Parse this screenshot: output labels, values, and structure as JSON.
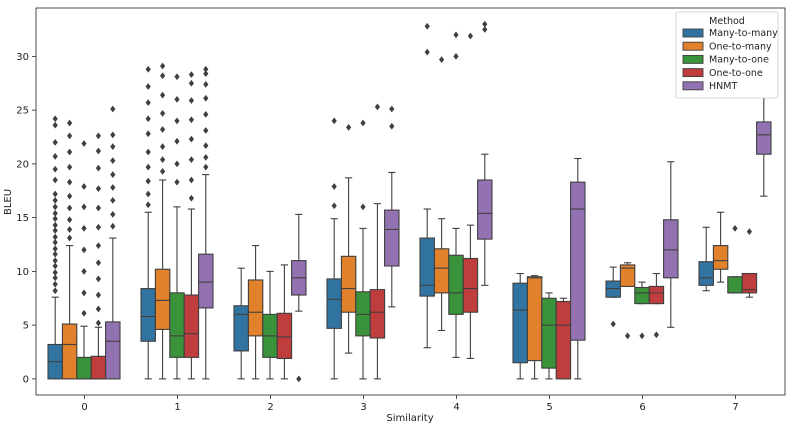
{
  "chart_data": {
    "type": "boxplot",
    "title": "",
    "xlabel": "Similarity",
    "ylabel": "BLEU",
    "ylim": [
      -1.5,
      34.5
    ],
    "yticks": [
      0,
      5,
      10,
      15,
      20,
      25,
      30
    ],
    "categories": [
      "0",
      "1",
      "2",
      "3",
      "4",
      "5",
      "6",
      "7"
    ],
    "legend": {
      "title": "Method",
      "position": "top-right"
    },
    "series": [
      {
        "name": "Many-to-many",
        "color": "#3274a1",
        "boxes": [
          {
            "q1": 0.0,
            "median": 1.6,
            "q3": 3.2,
            "whisker_low": 0.0,
            "whisker_high": 7.6,
            "outliers": [
              8.2,
              8.8,
              9.4,
              9.9,
              10.5,
              11.0,
              11.6,
              12.1,
              12.7,
              13.2,
              13.8,
              14.3,
              14.9,
              15.4,
              16.0,
              16.6,
              17.2,
              18.5,
              19.5,
              20.7,
              22.0,
              23.6,
              24.2
            ]
          },
          {
            "q1": 3.5,
            "median": 5.8,
            "q3": 8.4,
            "whisker_low": 0.0,
            "whisker_high": 15.5,
            "outliers": [
              16.2,
              17.2,
              18.4,
              19.7,
              21.1,
              22.8,
              24.2,
              25.7,
              27.2,
              28.8
            ]
          },
          {
            "q1": 2.6,
            "median": 6.0,
            "q3": 6.8,
            "whisker_low": 0.0,
            "whisker_high": 10.3,
            "outliers": []
          },
          {
            "q1": 4.7,
            "median": 7.4,
            "q3": 9.3,
            "whisker_low": 0.0,
            "whisker_high": 14.9,
            "outliers": [
              16.1,
              17.9,
              24.0
            ]
          },
          {
            "q1": 7.7,
            "median": 8.7,
            "q3": 13.1,
            "whisker_low": 2.9,
            "whisker_high": 15.8,
            "outliers": [
              30.4,
              32.8
            ]
          },
          {
            "q1": 1.5,
            "median": 6.4,
            "q3": 8.9,
            "whisker_low": 0.0,
            "whisker_high": 9.8,
            "outliers": []
          },
          {
            "q1": 7.6,
            "median": 8.4,
            "q3": 9.1,
            "whisker_low": 7.6,
            "whisker_high": 10.4,
            "outliers": [
              5.1
            ]
          },
          {
            "q1": 8.7,
            "median": 9.4,
            "q3": 10.9,
            "whisker_low": 8.2,
            "whisker_high": 14.1,
            "outliers": []
          }
        ]
      },
      {
        "name": "One-to-many",
        "color": "#e1812c",
        "boxes": [
          {
            "q1": 0.0,
            "median": 3.2,
            "q3": 5.1,
            "whisker_low": 0.0,
            "whisker_high": 12.4,
            "outliers": [
              13.1,
              13.9,
              14.8,
              15.9,
              17.0,
              18.3,
              19.7,
              21.1,
              22.6,
              23.8
            ]
          },
          {
            "q1": 4.6,
            "median": 7.3,
            "q3": 10.2,
            "whisker_low": 0.0,
            "whisker_high": 18.5,
            "outliers": [
              19.3,
              20.4,
              21.6,
              23.2,
              24.7,
              26.4,
              28.2,
              29.1
            ]
          },
          {
            "q1": 4.0,
            "median": 6.2,
            "q3": 9.2,
            "whisker_low": 0.0,
            "whisker_high": 12.4,
            "outliers": []
          },
          {
            "q1": 6.2,
            "median": 8.4,
            "q3": 11.4,
            "whisker_low": 2.4,
            "whisker_high": 18.7,
            "outliers": [
              23.4
            ]
          },
          {
            "q1": 8.0,
            "median": 10.3,
            "q3": 12.1,
            "whisker_low": 4.5,
            "whisker_high": 14.9,
            "outliers": [
              29.7
            ]
          },
          {
            "q1": 1.7,
            "median": 9.4,
            "q3": 9.5,
            "whisker_low": 0.0,
            "whisker_high": 9.6,
            "outliers": []
          },
          {
            "q1": 8.6,
            "median": 10.3,
            "q3": 10.6,
            "whisker_low": 8.6,
            "whisker_high": 10.8,
            "outliers": [
              4.0
            ]
          },
          {
            "q1": 10.2,
            "median": 11.0,
            "q3": 12.4,
            "whisker_low": 9.0,
            "whisker_high": 15.5,
            "outliers": []
          }
        ]
      },
      {
        "name": "Many-to-one",
        "color": "#3a923a",
        "boxes": [
          {
            "q1": 0.0,
            "median": 0.0,
            "q3": 2.0,
            "whisker_low": 0.0,
            "whisker_high": 4.9,
            "outliers": [
              6.1,
              8.0,
              10.0,
              12.0,
              14.0,
              16.0,
              17.9,
              21.9
            ]
          },
          {
            "q1": 2.0,
            "median": 4.0,
            "q3": 8.0,
            "whisker_low": 0.0,
            "whisker_high": 16.0,
            "outliers": [
              18.3,
              20.0,
              22.1,
              24.0,
              26.0,
              28.1
            ]
          },
          {
            "q1": 2.0,
            "median": 4.0,
            "q3": 6.0,
            "whisker_low": 0.0,
            "whisker_high": 10.0,
            "outliers": []
          },
          {
            "q1": 4.0,
            "median": 6.0,
            "q3": 8.1,
            "whisker_low": 0.0,
            "whisker_high": 14.0,
            "outliers": [
              16.0,
              23.8
            ]
          },
          {
            "q1": 6.0,
            "median": 8.0,
            "q3": 11.5,
            "whisker_low": 2.0,
            "whisker_high": 14.0,
            "outliers": [
              30.0,
              32.0
            ]
          },
          {
            "q1": 1.0,
            "median": 5.0,
            "q3": 7.5,
            "whisker_low": 0.0,
            "whisker_high": 8.0,
            "outliers": []
          },
          {
            "q1": 7.0,
            "median": 8.0,
            "q3": 8.5,
            "whisker_low": 7.0,
            "whisker_high": 9.0,
            "outliers": [
              4.0
            ]
          },
          {
            "q1": 8.0,
            "median": 8.0,
            "q3": 9.5,
            "whisker_low": 8.0,
            "whisker_high": 9.5,
            "outliers": [
              14.0
            ]
          }
        ]
      },
      {
        "name": "One-to-one",
        "color": "#c03d3e",
        "boxes": [
          {
            "q1": 0.0,
            "median": 0.0,
            "q3": 2.1,
            "whisker_low": 0.0,
            "whisker_high": 4.8,
            "outliers": [
              5.2,
              6.5,
              7.8,
              9.3,
              10.8,
              12.4,
              14.1,
              15.9,
              17.7,
              19.6,
              21.2,
              22.6
            ]
          },
          {
            "q1": 2.0,
            "median": 4.2,
            "q3": 7.8,
            "whisker_low": 0.0,
            "whisker_high": 15.8,
            "outliers": [
              16.8,
              18.5,
              20.4,
              22.3,
              24.1,
              25.9,
              27.5,
              28.3
            ]
          },
          {
            "q1": 1.9,
            "median": 3.9,
            "q3": 6.1,
            "whisker_low": 0.0,
            "whisker_high": 10.6,
            "outliers": []
          },
          {
            "q1": 3.8,
            "median": 6.2,
            "q3": 8.3,
            "whisker_low": 0.0,
            "whisker_high": 16.3,
            "outliers": [
              25.3
            ]
          },
          {
            "q1": 6.2,
            "median": 8.4,
            "q3": 11.2,
            "whisker_low": 1.9,
            "whisker_high": 14.3,
            "outliers": [
              31.9
            ]
          },
          {
            "q1": 0.0,
            "median": 5.0,
            "q3": 7.2,
            "whisker_low": 0.0,
            "whisker_high": 7.5,
            "outliers": []
          },
          {
            "q1": 7.0,
            "median": 8.0,
            "q3": 8.6,
            "whisker_low": 7.0,
            "whisker_high": 9.8,
            "outliers": [
              4.1
            ]
          },
          {
            "q1": 8.0,
            "median": 8.3,
            "q3": 9.8,
            "whisker_low": 7.6,
            "whisker_high": 9.8,
            "outliers": [
              13.7
            ]
          }
        ]
      },
      {
        "name": "HNMT",
        "color": "#9372b2",
        "boxes": [
          {
            "q1": 0.0,
            "median": 3.5,
            "q3": 5.3,
            "whisker_low": 0.0,
            "whisker_high": 13.1,
            "outliers": [
              14.2,
              15.3,
              16.6,
              17.8,
              19.0,
              20.3,
              21.6,
              22.7,
              25.1
            ]
          },
          {
            "q1": 6.6,
            "median": 9.0,
            "q3": 11.6,
            "whisker_low": 0.0,
            "whisker_high": 19.0,
            "outliers": [
              19.7,
              20.6,
              21.7,
              23.1,
              24.6,
              26.1,
              27.4,
              28.4,
              28.8
            ]
          },
          {
            "q1": 7.8,
            "median": 9.4,
            "q3": 11.0,
            "whisker_low": 6.3,
            "whisker_high": 15.3,
            "outliers": [
              0.0
            ]
          },
          {
            "q1": 10.5,
            "median": 13.9,
            "q3": 15.7,
            "whisker_low": 6.7,
            "whisker_high": 19.2,
            "outliers": [
              23.5,
              25.1
            ]
          },
          {
            "q1": 13.0,
            "median": 15.4,
            "q3": 18.5,
            "whisker_low": 8.7,
            "whisker_high": 20.9,
            "outliers": [
              32.5,
              33.0
            ]
          },
          {
            "q1": 3.6,
            "median": 15.8,
            "q3": 18.3,
            "whisker_low": 0.0,
            "whisker_high": 20.5,
            "outliers": []
          },
          {
            "q1": 9.4,
            "median": 12.0,
            "q3": 14.8,
            "whisker_low": 4.8,
            "whisker_high": 20.2,
            "outliers": []
          },
          {
            "q1": 20.9,
            "median": 22.7,
            "q3": 23.9,
            "whisker_low": 17.0,
            "whisker_high": 26.5,
            "outliers": []
          }
        ]
      }
    ]
  }
}
